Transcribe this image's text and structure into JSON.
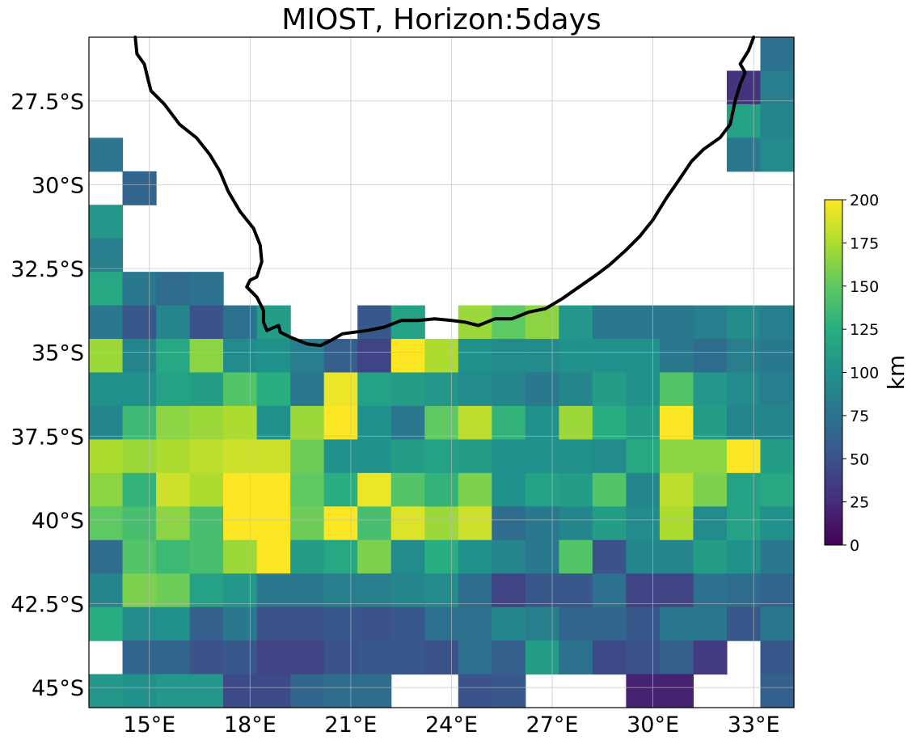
{
  "chart_data": {
    "type": "heatmap",
    "title": "MIOST, Horizon:5days",
    "colormap": "viridis",
    "x_ticks": [
      {
        "value": 15,
        "label": "15°E"
      },
      {
        "value": 18,
        "label": "18°E"
      },
      {
        "value": 21,
        "label": "21°E"
      },
      {
        "value": 24,
        "label": "24°E"
      },
      {
        "value": 27,
        "label": "27°E"
      },
      {
        "value": 30,
        "label": "30°E"
      },
      {
        "value": 33,
        "label": "33°E"
      }
    ],
    "y_ticks": [
      {
        "value": -27.5,
        "label": "27.5°S"
      },
      {
        "value": -30,
        "label": "30°S"
      },
      {
        "value": -32.5,
        "label": "32.5°S"
      },
      {
        "value": -35,
        "label": "35°S"
      },
      {
        "value": -37.5,
        "label": "37.5°S"
      },
      {
        "value": -40,
        "label": "40°S"
      },
      {
        "value": -42.5,
        "label": "42.5°S"
      },
      {
        "value": -45,
        "label": "45°S"
      }
    ],
    "xlim": [
      13.2,
      34.2
    ],
    "ylim": [
      -45.6,
      -25.6
    ],
    "grid": true,
    "colorbar": {
      "label": "km",
      "min": 0,
      "max": 200,
      "ticks": [
        "0",
        "25",
        "50",
        "75",
        "100",
        "125",
        "150",
        "175",
        "200"
      ]
    },
    "cells": {
      "lon_start": 13.2,
      "lat_start": -25.6,
      "step": 1,
      "rows": [
        [
          null,
          null,
          null,
          null,
          null,
          null,
          null,
          null,
          null,
          null,
          null,
          null,
          null,
          null,
          null,
          null,
          null,
          null,
          null,
          null,
          75
        ],
        [
          null,
          null,
          null,
          null,
          null,
          null,
          null,
          null,
          null,
          null,
          null,
          null,
          null,
          null,
          null,
          null,
          null,
          null,
          null,
          30,
          85
        ],
        [
          null,
          null,
          null,
          null,
          null,
          null,
          null,
          null,
          null,
          null,
          null,
          null,
          null,
          null,
          null,
          null,
          null,
          null,
          null,
          115,
          90
        ],
        [
          78,
          null,
          null,
          null,
          null,
          null,
          null,
          null,
          null,
          null,
          null,
          null,
          null,
          null,
          null,
          null,
          null,
          null,
          null,
          80,
          95
        ],
        [
          null,
          65,
          null,
          null,
          null,
          null,
          null,
          null,
          null,
          null,
          null,
          null,
          null,
          null,
          null,
          null,
          null,
          null,
          null,
          null,
          null
        ],
        [
          105,
          null,
          null,
          null,
          null,
          null,
          null,
          null,
          null,
          null,
          null,
          null,
          null,
          null,
          null,
          null,
          null,
          null,
          null,
          null,
          null
        ],
        [
          85,
          null,
          null,
          null,
          null,
          null,
          null,
          null,
          null,
          null,
          null,
          null,
          null,
          null,
          null,
          null,
          null,
          null,
          null,
          null,
          null
        ],
        [
          120,
          80,
          70,
          75,
          null,
          null,
          null,
          null,
          null,
          null,
          null,
          null,
          null,
          null,
          null,
          null,
          null,
          null,
          null,
          null,
          null
        ],
        [
          80,
          55,
          90,
          50,
          75,
          110,
          null,
          null,
          55,
          115,
          null,
          170,
          150,
          165,
          105,
          80,
          80,
          80,
          85,
          95,
          85
        ],
        [
          170,
          90,
          120,
          165,
          95,
          100,
          85,
          60,
          40,
          200,
          175,
          100,
          95,
          95,
          100,
          100,
          100,
          80,
          70,
          85,
          80
        ],
        [
          100,
          100,
          115,
          110,
          145,
          125,
          80,
          195,
          115,
          110,
          105,
          95,
          90,
          80,
          90,
          110,
          100,
          145,
          105,
          95,
          85
        ],
        [
          90,
          135,
          165,
          170,
          175,
          100,
          170,
          200,
          100,
          80,
          150,
          180,
          130,
          100,
          170,
          125,
          110,
          200,
          110,
          90,
          90
        ],
        [
          175,
          170,
          175,
          180,
          185,
          185,
          155,
          100,
          100,
          110,
          115,
          110,
          100,
          100,
          100,
          95,
          120,
          165,
          165,
          200,
          110
        ],
        [
          165,
          130,
          185,
          175,
          200,
          200,
          150,
          125,
          195,
          145,
          130,
          160,
          100,
          115,
          110,
          145,
          90,
          180,
          160,
          115,
          120
        ],
        [
          150,
          140,
          165,
          140,
          200,
          200,
          155,
          200,
          140,
          190,
          170,
          185,
          70,
          80,
          90,
          110,
          95,
          175,
          95,
          115,
          100
        ],
        [
          70,
          145,
          135,
          140,
          170,
          200,
          110,
          120,
          160,
          95,
          125,
          100,
          90,
          80,
          145,
          50,
          90,
          90,
          110,
          100,
          80
        ],
        [
          90,
          160,
          155,
          115,
          105,
          80,
          80,
          85,
          85,
          90,
          95,
          70,
          40,
          55,
          55,
          75,
          40,
          40,
          75,
          70,
          65
        ],
        [
          125,
          95,
          100,
          60,
          80,
          50,
          50,
          55,
          50,
          55,
          75,
          75,
          90,
          85,
          65,
          65,
          55,
          80,
          80,
          55,
          80
        ],
        [
          null,
          65,
          65,
          50,
          55,
          40,
          40,
          50,
          55,
          55,
          50,
          75,
          60,
          110,
          75,
          45,
          50,
          60,
          35,
          null,
          55
        ],
        [
          105,
          100,
          105,
          105,
          45,
          45,
          65,
          70,
          70,
          null,
          null,
          50,
          55,
          null,
          null,
          null,
          20,
          20,
          null,
          null,
          60
        ]
      ]
    },
    "coastline": [
      [
        14.58,
        -25.6
      ],
      [
        14.63,
        -26.1
      ],
      [
        14.85,
        -26.4
      ],
      [
        14.97,
        -26.9
      ],
      [
        15.05,
        -27.2
      ],
      [
        15.45,
        -27.6
      ],
      [
        15.9,
        -28.2
      ],
      [
        16.4,
        -28.6
      ],
      [
        16.8,
        -29.1
      ],
      [
        17.1,
        -29.6
      ],
      [
        17.35,
        -30.2
      ],
      [
        17.7,
        -30.8
      ],
      [
        18.1,
        -31.3
      ],
      [
        18.3,
        -31.8
      ],
      [
        18.35,
        -32.3
      ],
      [
        18.2,
        -32.75
      ],
      [
        18.0,
        -32.85
      ],
      [
        17.9,
        -33.05
      ],
      [
        18.2,
        -33.35
      ],
      [
        18.4,
        -33.75
      ],
      [
        18.4,
        -34.1
      ],
      [
        18.5,
        -34.35
      ],
      [
        18.85,
        -34.2
      ],
      [
        18.9,
        -34.4
      ],
      [
        19.2,
        -34.55
      ],
      [
        19.7,
        -34.75
      ],
      [
        20.1,
        -34.8
      ],
      [
        20.4,
        -34.65
      ],
      [
        20.75,
        -34.45
      ],
      [
        21.1,
        -34.4
      ],
      [
        21.5,
        -34.35
      ],
      [
        22.0,
        -34.25
      ],
      [
        22.5,
        -34.05
      ],
      [
        23.0,
        -34.05
      ],
      [
        23.5,
        -34.0
      ],
      [
        24.0,
        -34.05
      ],
      [
        24.4,
        -34.1
      ],
      [
        24.8,
        -34.2
      ],
      [
        25.3,
        -34.0
      ],
      [
        25.8,
        -34.0
      ],
      [
        26.3,
        -33.8
      ],
      [
        26.8,
        -33.7
      ],
      [
        27.3,
        -33.4
      ],
      [
        27.8,
        -33.05
      ],
      [
        28.3,
        -32.7
      ],
      [
        28.7,
        -32.4
      ],
      [
        29.2,
        -31.95
      ],
      [
        29.6,
        -31.55
      ],
      [
        30.0,
        -31.05
      ],
      [
        30.4,
        -30.4
      ],
      [
        30.75,
        -29.9
      ],
      [
        31.15,
        -29.3
      ],
      [
        31.5,
        -28.95
      ],
      [
        32.0,
        -28.6
      ],
      [
        32.3,
        -28.2
      ],
      [
        32.45,
        -27.5
      ],
      [
        32.6,
        -27.0
      ],
      [
        32.75,
        -26.65
      ],
      [
        32.6,
        -26.4
      ],
      [
        32.85,
        -26.0
      ],
      [
        33.0,
        -25.6
      ]
    ]
  }
}
